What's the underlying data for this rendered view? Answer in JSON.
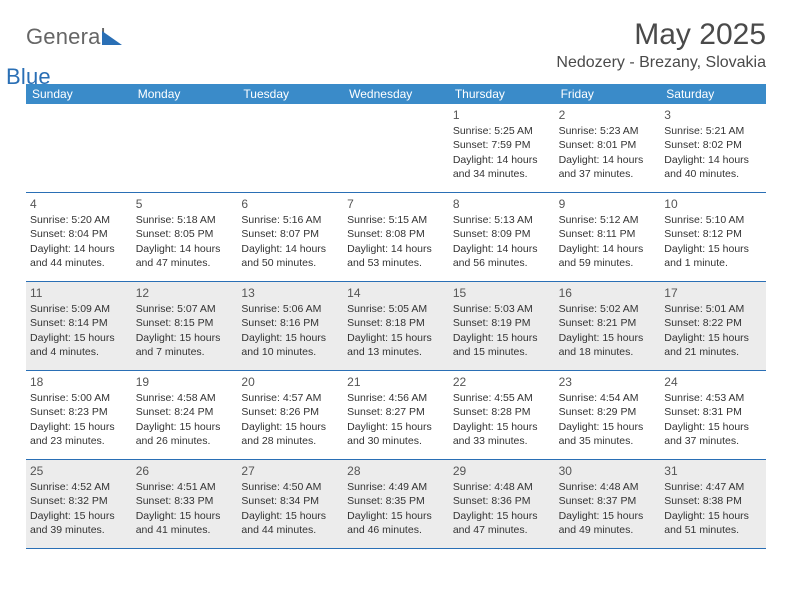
{
  "brand": {
    "part1": "General",
    "part2": "Blue"
  },
  "title": "May 2025",
  "location": "Nedozery - Brezany, Slovakia",
  "weekdays": [
    "Sunday",
    "Monday",
    "Tuesday",
    "Wednesday",
    "Thursday",
    "Friday",
    "Saturday"
  ],
  "colors": {
    "header_bar": "#3a8bc9",
    "rule": "#2a6fb5",
    "shaded_bg": "#ececec",
    "text": "#333333",
    "title_text": "#4a4a4a"
  },
  "layout": {
    "columns": 7,
    "leading_blank_cells": 4,
    "shaded_days": [
      11,
      12,
      13,
      14,
      15,
      16,
      17,
      25,
      26,
      27,
      28,
      29,
      30,
      31
    ]
  },
  "days": {
    "1": {
      "sunrise": "5:25 AM",
      "sunset": "7:59 PM",
      "daylight": "14 hours and 34 minutes."
    },
    "2": {
      "sunrise": "5:23 AM",
      "sunset": "8:01 PM",
      "daylight": "14 hours and 37 minutes."
    },
    "3": {
      "sunrise": "5:21 AM",
      "sunset": "8:02 PM",
      "daylight": "14 hours and 40 minutes."
    },
    "4": {
      "sunrise": "5:20 AM",
      "sunset": "8:04 PM",
      "daylight": "14 hours and 44 minutes."
    },
    "5": {
      "sunrise": "5:18 AM",
      "sunset": "8:05 PM",
      "daylight": "14 hours and 47 minutes."
    },
    "6": {
      "sunrise": "5:16 AM",
      "sunset": "8:07 PM",
      "daylight": "14 hours and 50 minutes."
    },
    "7": {
      "sunrise": "5:15 AM",
      "sunset": "8:08 PM",
      "daylight": "14 hours and 53 minutes."
    },
    "8": {
      "sunrise": "5:13 AM",
      "sunset": "8:09 PM",
      "daylight": "14 hours and 56 minutes."
    },
    "9": {
      "sunrise": "5:12 AM",
      "sunset": "8:11 PM",
      "daylight": "14 hours and 59 minutes."
    },
    "10": {
      "sunrise": "5:10 AM",
      "sunset": "8:12 PM",
      "daylight": "15 hours and 1 minute."
    },
    "11": {
      "sunrise": "5:09 AM",
      "sunset": "8:14 PM",
      "daylight": "15 hours and 4 minutes."
    },
    "12": {
      "sunrise": "5:07 AM",
      "sunset": "8:15 PM",
      "daylight": "15 hours and 7 minutes."
    },
    "13": {
      "sunrise": "5:06 AM",
      "sunset": "8:16 PM",
      "daylight": "15 hours and 10 minutes."
    },
    "14": {
      "sunrise": "5:05 AM",
      "sunset": "8:18 PM",
      "daylight": "15 hours and 13 minutes."
    },
    "15": {
      "sunrise": "5:03 AM",
      "sunset": "8:19 PM",
      "daylight": "15 hours and 15 minutes."
    },
    "16": {
      "sunrise": "5:02 AM",
      "sunset": "8:21 PM",
      "daylight": "15 hours and 18 minutes."
    },
    "17": {
      "sunrise": "5:01 AM",
      "sunset": "8:22 PM",
      "daylight": "15 hours and 21 minutes."
    },
    "18": {
      "sunrise": "5:00 AM",
      "sunset": "8:23 PM",
      "daylight": "15 hours and 23 minutes."
    },
    "19": {
      "sunrise": "4:58 AM",
      "sunset": "8:24 PM",
      "daylight": "15 hours and 26 minutes."
    },
    "20": {
      "sunrise": "4:57 AM",
      "sunset": "8:26 PM",
      "daylight": "15 hours and 28 minutes."
    },
    "21": {
      "sunrise": "4:56 AM",
      "sunset": "8:27 PM",
      "daylight": "15 hours and 30 minutes."
    },
    "22": {
      "sunrise": "4:55 AM",
      "sunset": "8:28 PM",
      "daylight": "15 hours and 33 minutes."
    },
    "23": {
      "sunrise": "4:54 AM",
      "sunset": "8:29 PM",
      "daylight": "15 hours and 35 minutes."
    },
    "24": {
      "sunrise": "4:53 AM",
      "sunset": "8:31 PM",
      "daylight": "15 hours and 37 minutes."
    },
    "25": {
      "sunrise": "4:52 AM",
      "sunset": "8:32 PM",
      "daylight": "15 hours and 39 minutes."
    },
    "26": {
      "sunrise": "4:51 AM",
      "sunset": "8:33 PM",
      "daylight": "15 hours and 41 minutes."
    },
    "27": {
      "sunrise": "4:50 AM",
      "sunset": "8:34 PM",
      "daylight": "15 hours and 44 minutes."
    },
    "28": {
      "sunrise": "4:49 AM",
      "sunset": "8:35 PM",
      "daylight": "15 hours and 46 minutes."
    },
    "29": {
      "sunrise": "4:48 AM",
      "sunset": "8:36 PM",
      "daylight": "15 hours and 47 minutes."
    },
    "30": {
      "sunrise": "4:48 AM",
      "sunset": "8:37 PM",
      "daylight": "15 hours and 49 minutes."
    },
    "31": {
      "sunrise": "4:47 AM",
      "sunset": "8:38 PM",
      "daylight": "15 hours and 51 minutes."
    }
  },
  "labels": {
    "sunrise_prefix": "Sunrise: ",
    "sunset_prefix": "Sunset: ",
    "daylight_prefix": "Daylight: "
  }
}
